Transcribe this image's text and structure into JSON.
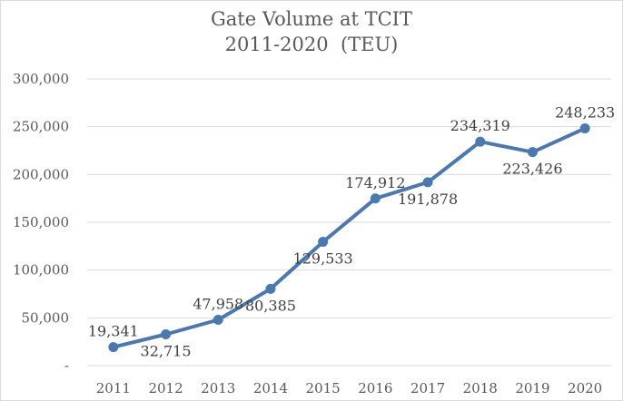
{
  "chart_data": {
    "type": "line",
    "title": "Gate Volume at TCIT",
    "subtitle": "2011-2020  (TEU)",
    "x": [
      "2011",
      "2012",
      "2013",
      "2014",
      "2015",
      "2016",
      "2017",
      "2018",
      "2019",
      "2020"
    ],
    "series": [
      {
        "values": [
          19341,
          32715,
          47958,
          80385,
          129533,
          174912,
          191878,
          234319,
          223426,
          248233
        ]
      }
    ],
    "data_labels": [
      "19,341",
      "32,715",
      "47,958",
      "80,385",
      "129,533",
      "174,912",
      "191,878",
      "234,319",
      "223,426",
      "248,233"
    ],
    "label_positions": [
      "above",
      "below",
      "above",
      "below",
      "below",
      "above",
      "below",
      "above",
      "below",
      "above"
    ],
    "yticks": [
      0,
      50000,
      100000,
      150000,
      200000,
      250000,
      300000
    ],
    "ytick_labels": [
      "-",
      "50,000",
      "100,000",
      "150,000",
      "200,000",
      "250,000",
      "300,000"
    ],
    "ylim": [
      0,
      300000
    ],
    "grid": true,
    "legend": "none",
    "colors": {
      "line": "#4a78b0",
      "grid": "#d9d9d9",
      "text": "#595959"
    }
  }
}
